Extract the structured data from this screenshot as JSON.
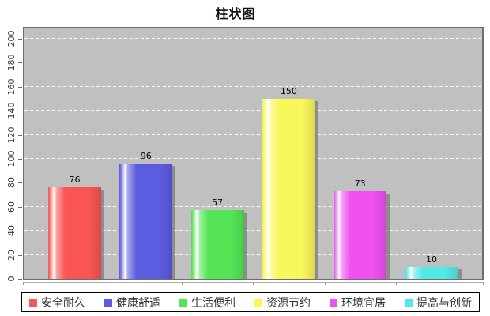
{
  "title": "柱状图",
  "colors": {
    "page_background": "#ffffff",
    "plot_background": "#c0c0c0",
    "plot_border": "#6e6e6e",
    "gridline": "#ffffff",
    "legend_border": "#000000",
    "legend_background": "#ffffff",
    "text": "#333333",
    "bar_shadow": "#8f8f8f"
  },
  "chart_data": {
    "type": "bar",
    "title": "柱状图",
    "categories": [
      "安全耐久",
      "健康舒适",
      "生活便利",
      "资源节约",
      "环境宜居",
      "提高与创新"
    ],
    "values": [
      76,
      96,
      57,
      150,
      73,
      10
    ],
    "colors": [
      "#fa5555",
      "#5c5ce0",
      "#55e455",
      "#f8f85a",
      "#f050f0",
      "#55e8e8"
    ],
    "value_labels": [
      "76",
      "96",
      "57",
      "150",
      "73",
      "10"
    ],
    "xlabel": "",
    "ylabel": "",
    "ylim": [
      0,
      200
    ],
    "yticks": [
      0,
      20,
      40,
      60,
      80,
      100,
      120,
      140,
      160,
      180,
      200
    ],
    "grid": "horizontal, white dashed, on gray plot background",
    "gloss": "bars have white glossy highlight stripe and gray drop shadow",
    "legend_position": "bottom",
    "legend_border": true
  }
}
